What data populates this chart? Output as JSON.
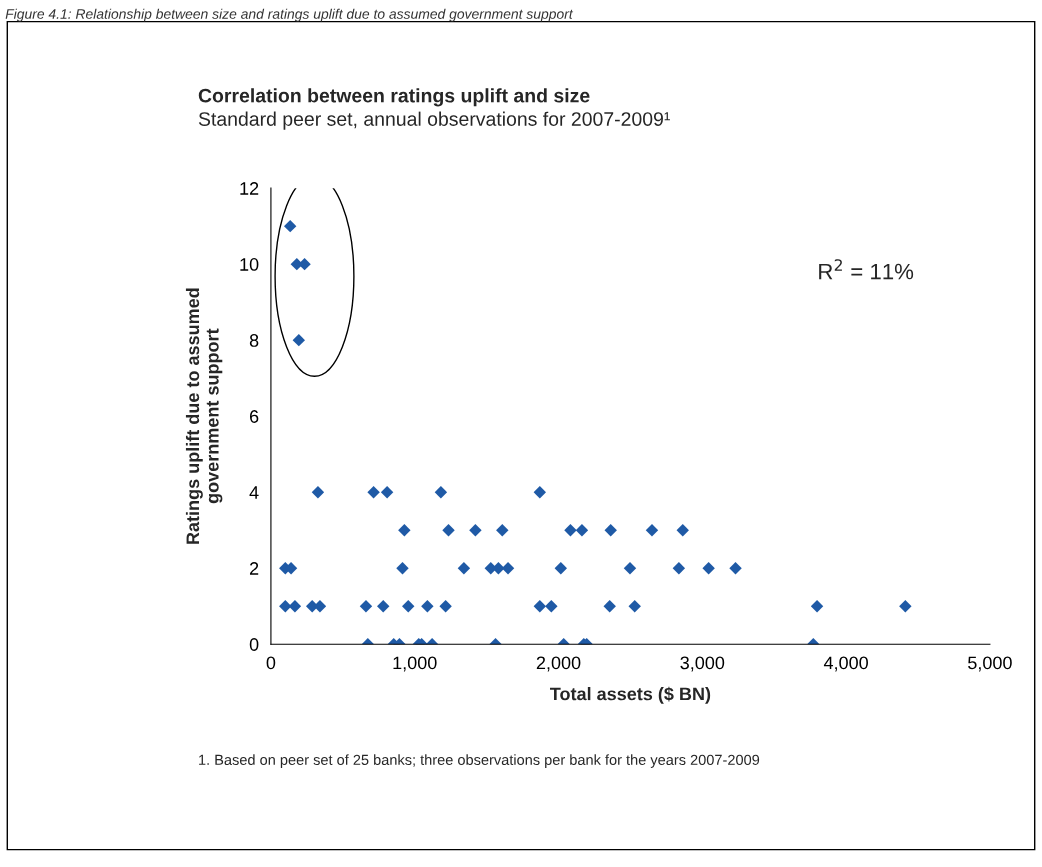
{
  "chart_data": {
    "type": "scatter",
    "title": "Correlation between ratings uplift and size",
    "subtitle": "Standard peer set, annual observations for 2007-2009¹",
    "xlabel": "Total assets ($ BN)",
    "ylabel": "Ratings uplift due to assumed\ngovernment support",
    "annotations": [
      "Figure 4.1: Relationship between size and ratings uplift due to assumed government support",
      "R$^{2}$ = 11%",
      "1. Based on peer set of 25 banks; three observations per bank for the years 2007-2009"
    ],
    "series": [
      {
        "color": "#1f5aa6",
        "x": [
          134,
          180,
          234,
          194,
          327,
          714,
          808,
          1182,
          1870,
          928,
          1235,
          1422,
          1609,
          2083,
          2163,
          2363,
          2650,
          2864,
          100,
          140,
          915,
          1342,
          1529,
          1582,
          1649,
          2016,
          2497,
          2837,
          3044,
          3231,
          100,
          167,
          287,
          341,
          661,
          781,
          955,
          1088,
          1215,
          1870,
          1950,
          2356,
          2530,
          3798,
          4412,
          674,
          854,
          894,
          1028,
          1048,
          1121,
          1562,
          2036,
          2176,
          2196,
          3772
        ],
        "values": [
          11,
          10,
          10,
          8,
          4,
          4,
          4,
          4,
          4,
          3,
          3,
          3,
          3,
          3,
          3,
          3,
          3,
          3,
          2,
          2,
          2,
          2,
          2,
          2,
          2,
          2,
          2,
          2,
          2,
          2,
          1,
          1,
          1,
          1,
          1,
          1,
          1,
          1,
          1,
          1,
          1,
          1,
          1,
          1,
          1,
          0,
          0,
          0,
          0,
          0,
          0,
          0,
          0,
          0,
          0,
          0
        ]
      }
    ],
    "xlim": [
      0,
      5000
    ],
    "xticks": [
      0,
      {
        "value": 1000,
        "label": "1,000"
      },
      {
        "value": 2000,
        "label": "2,000"
      },
      {
        "value": 3000,
        "label": "3,000"
      },
      {
        "value": 4000,
        "label": "4,000"
      },
      {
        "value": 5000,
        "label": "5,000"
      }
    ],
    "ylim": [
      0,
      12
    ],
    "yticks": [
      0,
      2,
      4,
      6,
      8,
      10,
      12
    ],
    "marker": "diamond",
    "grid": false,
    "legend": false
  }
}
